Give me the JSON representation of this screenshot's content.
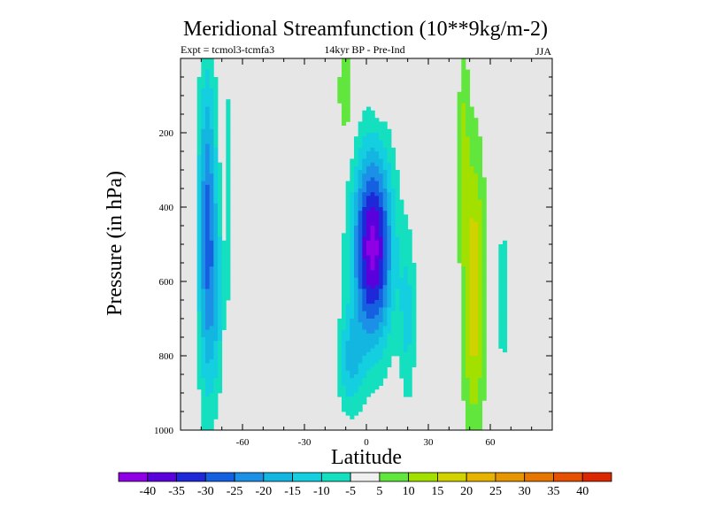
{
  "chart_data": {
    "type": "heatmap",
    "title": "Meridional Streamfunction (10**9kg/m-2)",
    "subtitle_left": "Expt = tcmol3-tcmfa3",
    "subtitle_center": "14kyr BP - Pre-Ind",
    "subtitle_right": "JJA",
    "xlabel": "Latitude",
    "ylabel": "Pressure (in hPa)",
    "xlim": [
      -90,
      90
    ],
    "ylim": [
      0,
      1000
    ],
    "x_ticks": [
      -60,
      -30,
      0,
      30,
      60
    ],
    "x_tick_labels": [
      "-60",
      "-30",
      "0",
      "30",
      "60"
    ],
    "y_ticks": [
      200,
      400,
      600,
      800,
      1000
    ],
    "y_tick_labels": [
      "200",
      "400",
      "600",
      "800",
      "1000"
    ],
    "missing_color": "#e6e6e6",
    "colorbar": {
      "boundaries": [
        -45,
        -40,
        -35,
        -30,
        -25,
        -20,
        -15,
        -10,
        -5,
        5,
        10,
        15,
        20,
        25,
        30,
        35,
        40,
        45
      ],
      "labels": [
        "-40",
        "-35",
        "-30",
        "-25",
        "-20",
        "-15",
        "-10",
        "-5",
        "5",
        "10",
        "15",
        "20",
        "25",
        "30",
        "35",
        "40"
      ],
      "colors": [
        "#8f00e6",
        "#5a00dc",
        "#1e28d8",
        "#1460e0",
        "#1c90e6",
        "#12b6e0",
        "#14cfe0",
        "#14e0c0",
        "#f0f0f0",
        "#60e63c",
        "#a2e000",
        "#d2d200",
        "#e6b400",
        "#e69600",
        "#e67600",
        "#e65000",
        "#dc2800"
      ]
    },
    "approx_extrema": [
      {
        "name": "tropical-cell",
        "lat_center": 3,
        "p_center": 500,
        "lat_range": [
          -15,
          22
        ],
        "p_range": [
          210,
          970
        ],
        "min_value": -42
      },
      {
        "name": "southern-polar-cell",
        "lat_center": -77,
        "p_center": 500,
        "lat_range": [
          -88,
          -68
        ],
        "p_range": [
          0,
          960
        ],
        "min_value": -27
      },
      {
        "name": "northern-midlat-cell",
        "lat_center": 52,
        "p_center": 650,
        "lat_range": [
          44,
          64
        ],
        "p_range": [
          0,
          975
        ],
        "max_value": 19
      }
    ]
  }
}
